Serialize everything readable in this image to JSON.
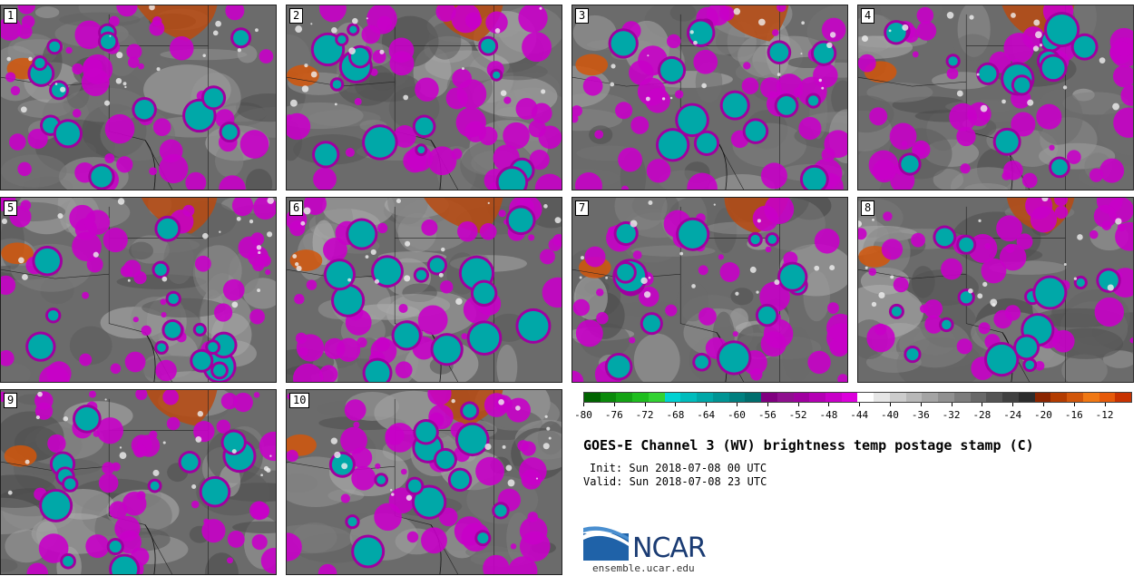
{
  "panels": [
    {
      "label": "1"
    },
    {
      "label": "2"
    },
    {
      "label": "3"
    },
    {
      "label": "4"
    },
    {
      "label": "5"
    },
    {
      "label": "6"
    },
    {
      "label": "7"
    },
    {
      "label": "8"
    },
    {
      "label": "9"
    },
    {
      "label": "10"
    }
  ],
  "colorbar": {
    "ticks": [
      "-80",
      "-76",
      "-72",
      "-68",
      "-64",
      "-60",
      "-56",
      "-52",
      "-48",
      "-44",
      "-40",
      "-36",
      "-32",
      "-28",
      "-24",
      "-20",
      "-16",
      "-12"
    ],
    "colors": [
      "#006400",
      "#0a8a0a",
      "#14a314",
      "#1ebe1e",
      "#32d232",
      "#00d2d2",
      "#00bcbc",
      "#00a8a8",
      "#009494",
      "#008080",
      "#006e6e",
      "#800080",
      "#8f0f8f",
      "#a000a0",
      "#b400b4",
      "#c800c8",
      "#dc00dc",
      "#ffffff",
      "#e6e6e6",
      "#cccccc",
      "#b8b8b8",
      "#a4a4a4",
      "#909090",
      "#7c7c7c",
      "#686868",
      "#545454",
      "#404040",
      "#2c2c2c",
      "#8b2500",
      "#b33c00",
      "#d2560a",
      "#f07814",
      "#e65a0a",
      "#c83200"
    ]
  },
  "title": "GOES-E Channel 3 (WV) brightness temp postage stamp (C)",
  "init_text": "Init: Sun 2018-07-08 00 UTC",
  "valid_text": "Valid: Sun 2018-07-08 23 UTC",
  "logo_text": "NCAR",
  "site": "ensemble.ucar.edu"
}
